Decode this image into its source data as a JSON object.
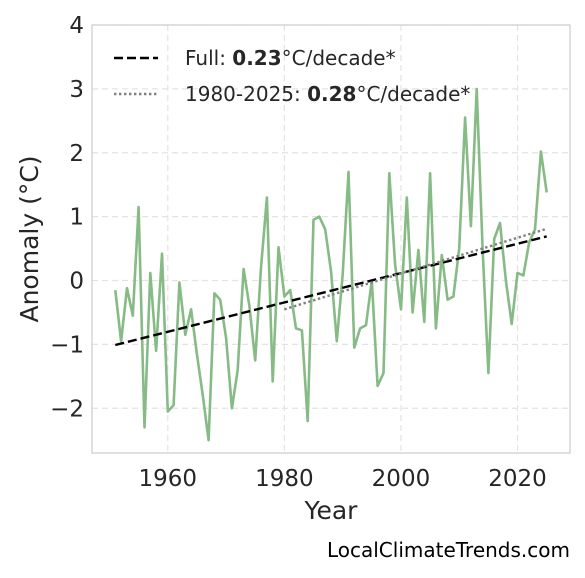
{
  "chart_data": {
    "type": "line",
    "xlabel": "Year",
    "ylabel": "Anomaly (°C)",
    "xlim": [
      1947,
      2029
    ],
    "ylim": [
      -2.7,
      4
    ],
    "xticks": [
      1960,
      1980,
      2000,
      2020
    ],
    "yticks": [
      4,
      3,
      2,
      1,
      0,
      -1,
      -2
    ],
    "ytick_labels": [
      "4",
      "3",
      "2",
      "1",
      "0",
      "−1",
      "−2"
    ],
    "grid": true,
    "legend_position": "top-left",
    "series": [
      {
        "kind": "data",
        "color": "#86bb85",
        "x": [
          1951,
          1952,
          1953,
          1954,
          1955,
          1956,
          1957,
          1958,
          1959,
          1960,
          1961,
          1962,
          1963,
          1964,
          1965,
          1966,
          1967,
          1968,
          1969,
          1970,
          1971,
          1972,
          1973,
          1974,
          1975,
          1976,
          1977,
          1978,
          1979,
          1980,
          1981,
          1982,
          1983,
          1984,
          1985,
          1986,
          1987,
          1988,
          1989,
          1990,
          1991,
          1992,
          1993,
          1994,
          1995,
          1996,
          1997,
          1998,
          1999,
          2000,
          2001,
          2002,
          2003,
          2004,
          2005,
          2006,
          2007,
          2008,
          2009,
          2010,
          2011,
          2012,
          2013,
          2014,
          2015,
          2016,
          2017,
          2018,
          2019,
          2020,
          2021,
          2022,
          2023,
          2024,
          2025
        ],
        "y": [
          -0.15,
          -0.95,
          -0.12,
          -0.55,
          1.15,
          -2.3,
          0.12,
          -1.1,
          0.42,
          -2.05,
          -1.95,
          -0.03,
          -0.85,
          -0.45,
          -1.15,
          -1.8,
          -2.5,
          -0.2,
          -0.3,
          -0.9,
          -2.0,
          -1.4,
          0.18,
          -0.4,
          -1.25,
          0.2,
          1.3,
          -1.58,
          0.52,
          -0.25,
          -0.15,
          -0.75,
          -0.78,
          -2.2,
          0.95,
          1.0,
          0.8,
          0.15,
          -0.95,
          0.1,
          1.7,
          -1.05,
          -0.75,
          -0.7,
          0.0,
          -1.65,
          -1.45,
          1.68,
          0.25,
          -0.45,
          1.3,
          -0.5,
          0.48,
          -0.65,
          1.68,
          -0.75,
          0.4,
          -0.3,
          -0.25,
          0.5,
          2.55,
          0.85,
          3.0,
          0.5,
          -1.45,
          0.65,
          0.9,
          0.0,
          -0.68,
          0.12,
          0.08,
          0.6,
          0.8,
          2.02,
          1.38
        ]
      },
      {
        "kind": "trend",
        "name": "Full",
        "rate": "0.23",
        "unit": "°C/decade*",
        "style": "dashed",
        "color": "#000000",
        "x": [
          1951,
          2025
        ],
        "y": [
          -1.01,
          0.69
        ]
      },
      {
        "kind": "trend",
        "name": "1980-2025",
        "rate": "0.28",
        "unit": "°C/decade*",
        "style": "dotted",
        "color": "#808080",
        "x": [
          1980,
          2025
        ],
        "y": [
          -0.45,
          0.81
        ]
      }
    ]
  },
  "legend": {
    "full_prefix": "Full: ",
    "full_rate": "0.23",
    "full_unit": "°C/decade*",
    "recent_prefix": "1980-2025: ",
    "recent_rate": "0.28",
    "recent_unit": "°C/decade*"
  },
  "watermark": "LocalClimateTrends.com"
}
